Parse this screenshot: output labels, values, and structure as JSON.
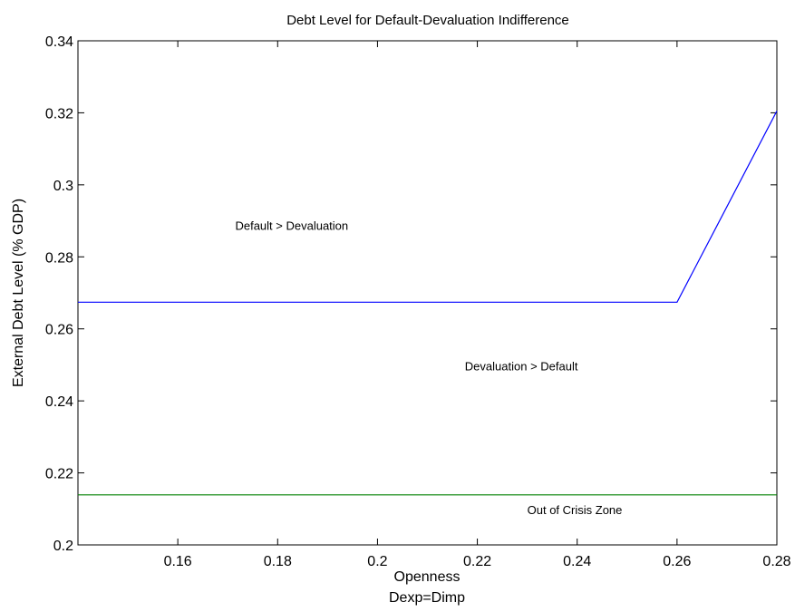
{
  "chart_data": {
    "type": "line",
    "title": "Debt Level for Default-Devaluation Indifference",
    "xlabel": "Openness",
    "xlabel2": "Dexp=Dimp",
    "ylabel": "External Debt Level (% GDP)",
    "xlim": [
      0.14,
      0.28
    ],
    "ylim": [
      0.2,
      0.34
    ],
    "xticks": [
      0.16,
      0.18,
      0.2,
      0.22,
      0.24,
      0.26,
      0.28
    ],
    "xtick_labels": [
      "0.16",
      "0.18",
      "0.2",
      "0.22",
      "0.24",
      "0.26",
      "0.28"
    ],
    "yticks": [
      0.2,
      0.22,
      0.24,
      0.26,
      0.28,
      0.3,
      0.32,
      0.34
    ],
    "ytick_labels": [
      "0.2",
      "0.22",
      "0.24",
      "0.26",
      "0.28",
      "0.3",
      "0.32",
      "0.34"
    ],
    "grid": false,
    "series": [
      {
        "color": "#0000ff",
        "x": [
          0.14,
          0.26,
          0.28
        ],
        "y": [
          0.2674,
          0.2674,
          0.3205
        ]
      },
      {
        "color": "#008000",
        "x": [
          0.14,
          0.28
        ],
        "y": [
          0.2139,
          0.2139
        ]
      }
    ],
    "annotations": [
      {
        "text": "Default  >  Devaluation",
        "x": 0.1715,
        "y": 0.2875
      },
      {
        "text": "Devaluation  >  Default",
        "x": 0.2175,
        "y": 0.2485
      },
      {
        "text": "Out of Crisis Zone",
        "x": 0.23,
        "y": 0.2085
      }
    ]
  }
}
